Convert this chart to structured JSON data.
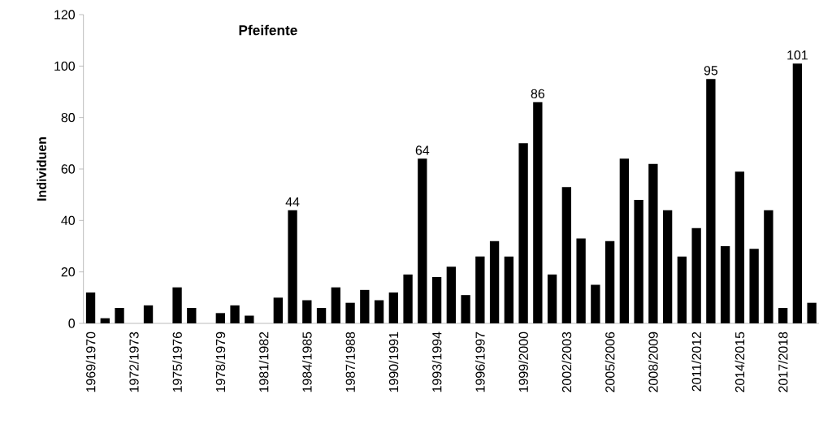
{
  "chart_data": {
    "type": "bar",
    "title": "Pfeifente",
    "ylabel": "Individuen",
    "categories": [
      "1969/1970",
      null,
      null,
      "1972/1973",
      null,
      null,
      "1975/1976",
      null,
      null,
      "1978/1979",
      null,
      null,
      "1981/1982",
      null,
      null,
      "1984/1985",
      null,
      null,
      "1987/1988",
      null,
      null,
      "1990/1991",
      null,
      null,
      "1993/1994",
      null,
      null,
      "1996/1997",
      null,
      null,
      "1999/2000",
      null,
      null,
      "2002/2003",
      null,
      null,
      "2005/2006",
      null,
      null,
      "2008/2009",
      null,
      null,
      "2011/2012",
      null,
      null,
      "2014/2015",
      null,
      null,
      "2017/2018",
      null,
      null
    ],
    "values": [
      12,
      2,
      6,
      0,
      7,
      0,
      14,
      6,
      0,
      4,
      7,
      3,
      0,
      10,
      44,
      9,
      6,
      14,
      8,
      13,
      9,
      12,
      19,
      64,
      18,
      22,
      11,
      26,
      32,
      26,
      70,
      86,
      19,
      53,
      33,
      15,
      32,
      64,
      48,
      62,
      44,
      26,
      37,
      95,
      30,
      59,
      29,
      44,
      6,
      101,
      8
    ],
    "value_labels": [
      null,
      null,
      null,
      null,
      null,
      null,
      null,
      null,
      null,
      null,
      null,
      null,
      null,
      null,
      "44",
      null,
      null,
      null,
      null,
      null,
      null,
      null,
      null,
      "64",
      null,
      null,
      null,
      null,
      null,
      null,
      null,
      "86",
      null,
      null,
      null,
      null,
      null,
      null,
      null,
      null,
      null,
      null,
      null,
      "95",
      null,
      null,
      null,
      null,
      null,
      "101",
      null
    ],
    "color": "#000000",
    "ylim": [
      0,
      120
    ],
    "yticks": [
      0,
      20,
      40,
      60,
      80,
      100,
      120
    ],
    "grid": false
  }
}
